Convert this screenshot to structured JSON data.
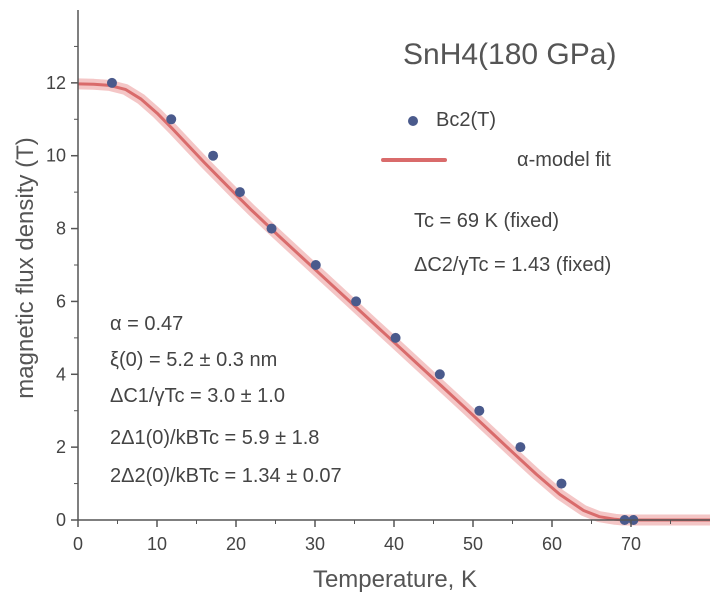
{
  "chart_data": {
    "type": "scatter",
    "title": "SnH4(180 GPa)",
    "xlabel": "Temperature, K",
    "ylabel": "magnetic flux density (T)",
    "xlim": [
      0,
      80
    ],
    "ylim": [
      0,
      14
    ],
    "x_ticks": [
      0,
      10,
      20,
      30,
      40,
      50,
      60,
      70
    ],
    "y_ticks": [
      0,
      2,
      4,
      6,
      8,
      10,
      12
    ],
    "series": [
      {
        "name": "Bc2(T)",
        "kind": "points",
        "color": "#4a5a8c",
        "x": [
          4.3,
          11.8,
          17.1,
          20.5,
          24.5,
          30.1,
          35.2,
          40.2,
          45.8,
          50.8,
          56.0,
          61.2,
          69.2,
          70.3
        ],
        "y": [
          12.0,
          11.0,
          10.0,
          9.0,
          8.0,
          7.0,
          6.0,
          5.0,
          4.0,
          3.0,
          2.0,
          1.0,
          0.0,
          0.0
        ]
      },
      {
        "name": "α-model fit",
        "kind": "line",
        "color": "#d96b6b",
        "x": [
          0,
          2,
          4,
          6,
          8,
          10,
          12,
          14,
          16,
          18,
          20,
          22,
          25,
          28,
          31,
          34,
          37,
          40,
          43,
          46,
          49,
          52,
          55,
          58,
          61,
          64,
          66,
          68,
          69,
          70,
          75,
          80
        ],
        "y": [
          11.97,
          11.96,
          11.93,
          11.82,
          11.55,
          11.17,
          10.73,
          10.27,
          9.81,
          9.37,
          8.93,
          8.5,
          7.88,
          7.28,
          6.68,
          6.08,
          5.48,
          4.88,
          4.28,
          3.68,
          3.08,
          2.47,
          1.86,
          1.26,
          0.7,
          0.26,
          0.09,
          0.02,
          0.0,
          0.0,
          0.0,
          0.0
        ]
      }
    ],
    "legend": [
      "Bc2(T)",
      "α-model fit"
    ],
    "legend_position": "top-right",
    "annotations": {
      "tc": "Tc = 69 K (fixed)",
      "dc2": "ΔC2/γTc = 1.43 (fixed)",
      "alpha": "α = 0.47",
      "xi": "ξ(0) = 5.2 ± 0.3 nm",
      "dc1": "ΔC1/γTc = 3.0 ± 1.0",
      "d1": "2Δ1(0)/kBTc = 5.9 ± 1.8",
      "d2": "2Δ2(0)/kBTc = 1.34 ± 0.07"
    }
  }
}
